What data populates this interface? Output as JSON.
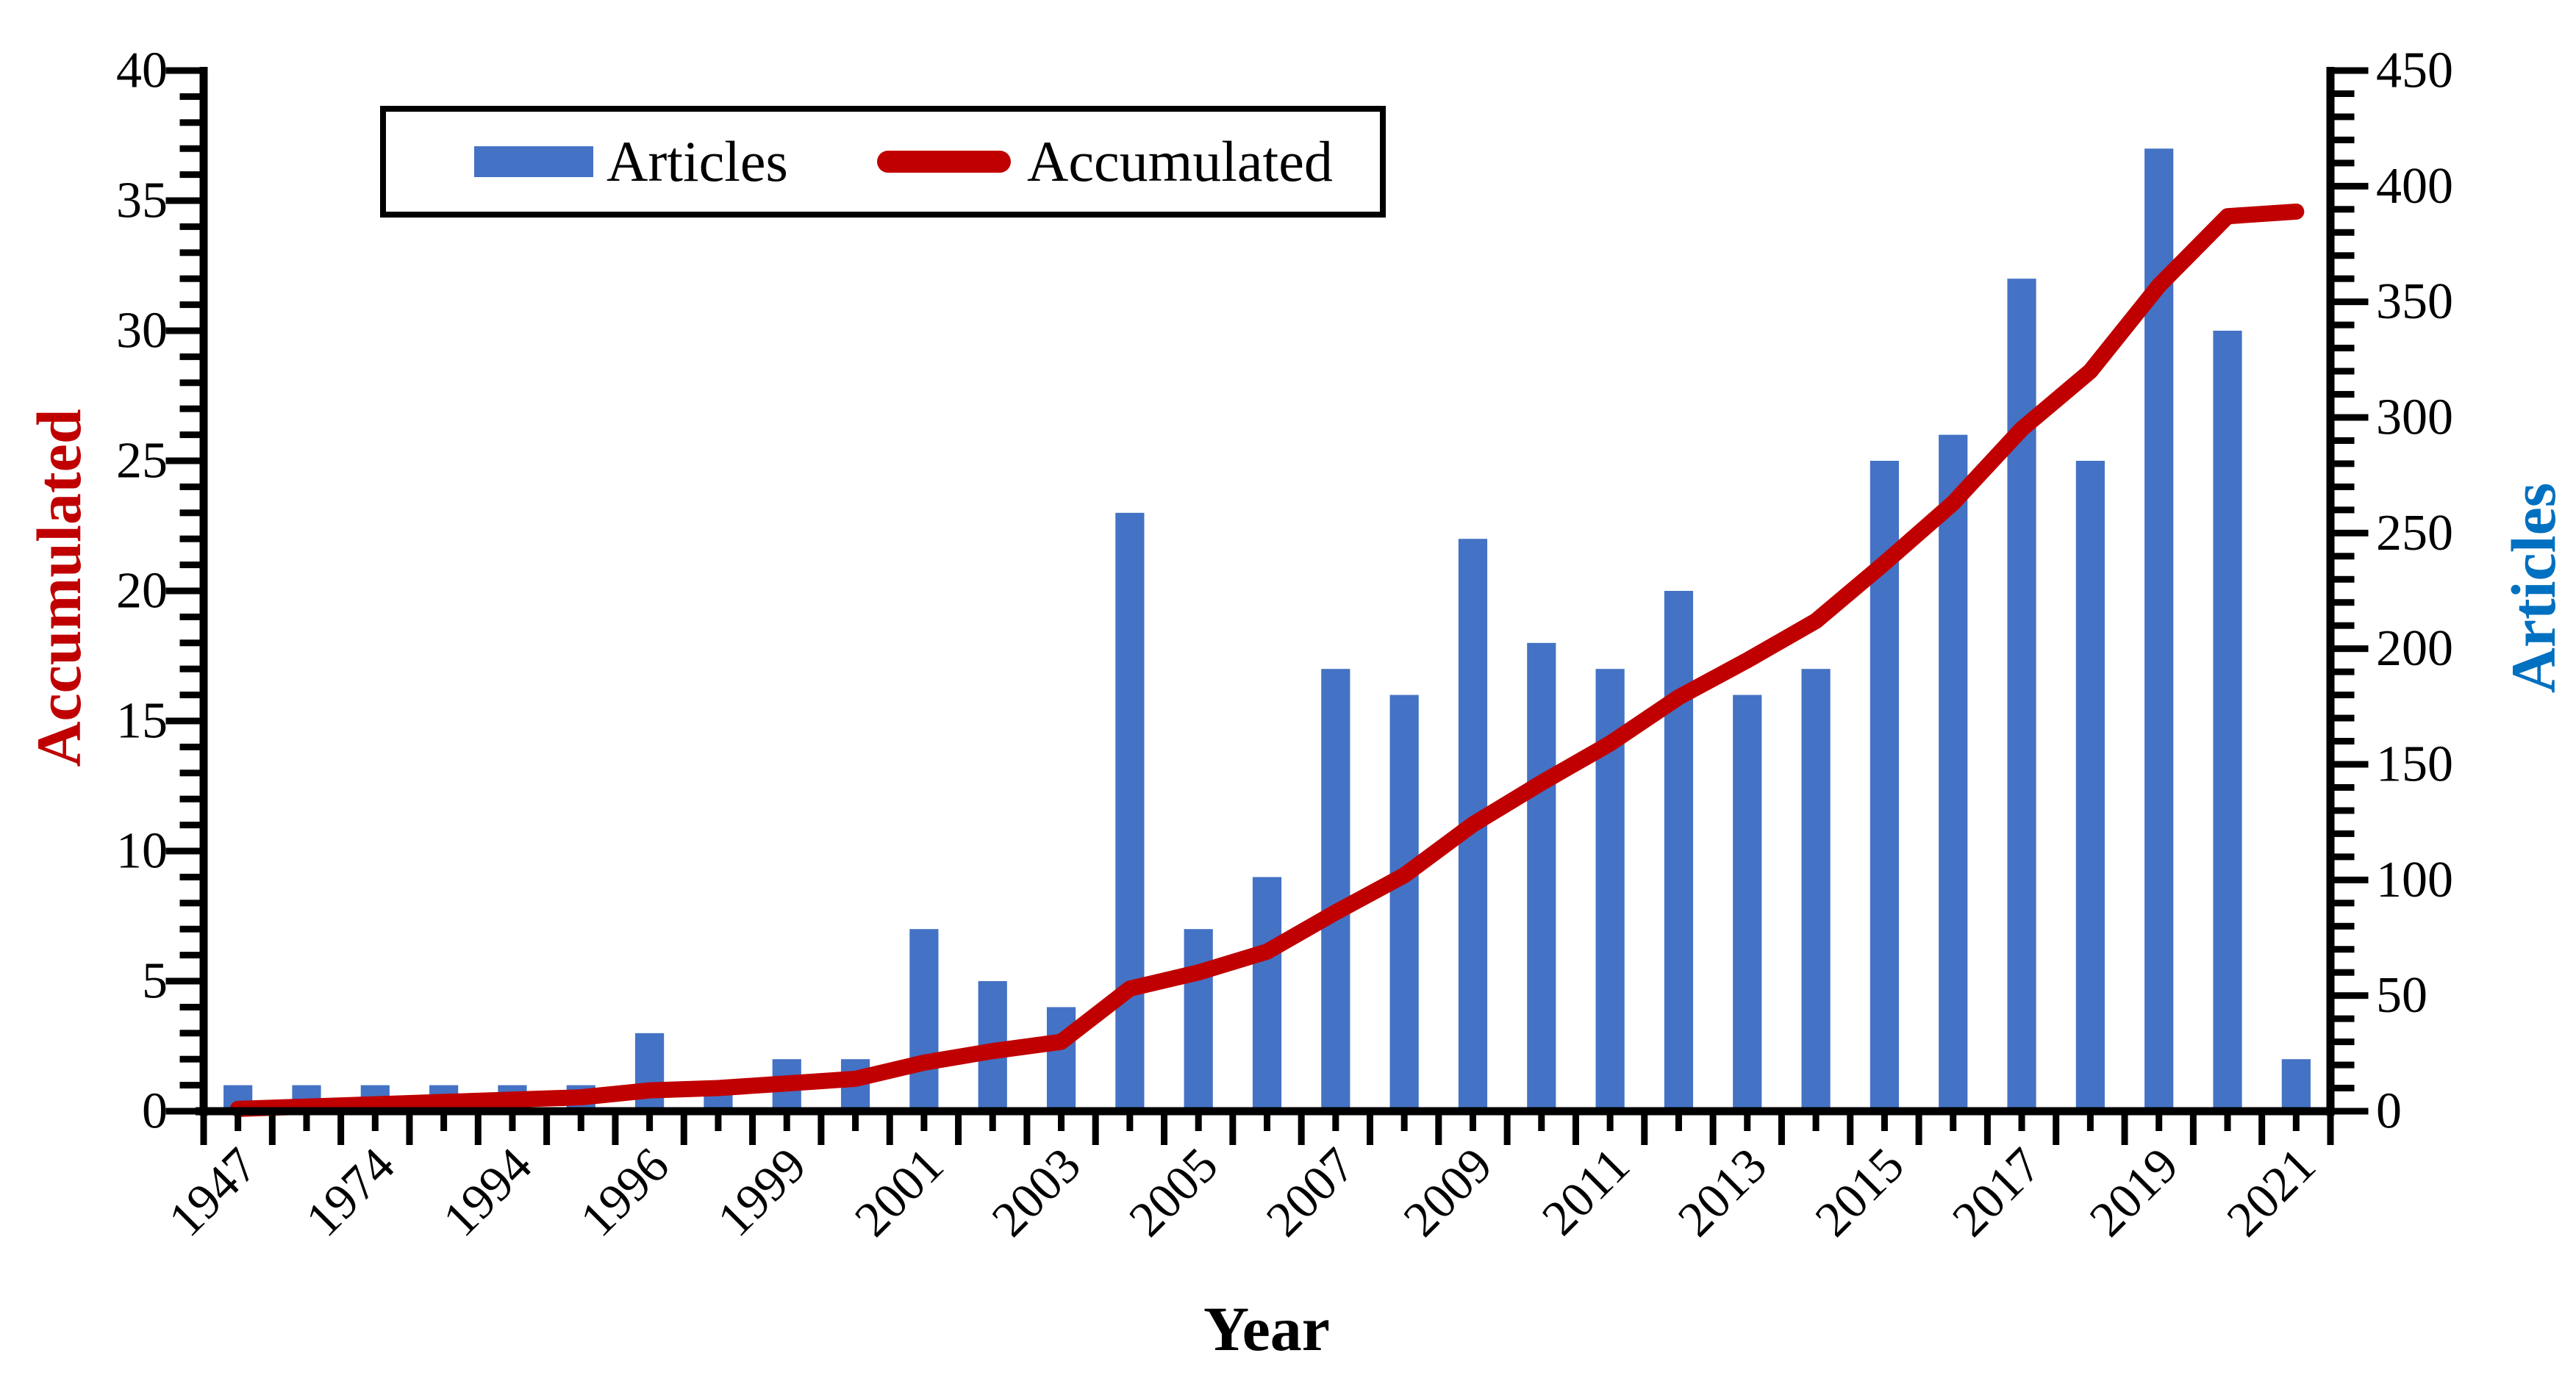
{
  "chart_data": {
    "type": "combo",
    "categories": [
      "1947",
      "",
      "1974",
      "",
      "1994",
      "",
      "1996",
      "",
      "1999",
      "",
      "2001",
      "",
      "2003",
      "",
      "2005",
      "",
      "2007",
      "",
      "2009",
      "",
      "2011",
      "",
      "2013",
      "",
      "2015",
      "",
      "2017",
      "",
      "2019",
      "",
      "2021"
    ],
    "series": [
      {
        "name": "Articles",
        "type": "bar",
        "axis": "left",
        "color": "#4472C4",
        "values": [
          1,
          1,
          1,
          1,
          1,
          1,
          3,
          1,
          2,
          2,
          7,
          5,
          4,
          23,
          7,
          9,
          17,
          16,
          22,
          18,
          17,
          20,
          16,
          17,
          25,
          26,
          32,
          25,
          37,
          30,
          2
        ]
      },
      {
        "name": "Accumulated",
        "type": "line",
        "axis": "right",
        "color": "#C00000",
        "values": [
          1,
          2,
          3,
          4,
          5,
          6,
          9,
          10,
          12,
          14,
          21,
          26,
          30,
          53,
          60,
          69,
          86,
          102,
          124,
          142,
          159,
          179,
          195,
          212,
          237,
          263,
          295,
          320,
          357,
          387,
          389
        ]
      }
    ],
    "left_axis": {
      "title": "Accumulated",
      "title_color": "#C00000",
      "min": 0,
      "max": 40,
      "major_step": 5,
      "minor_step": 1,
      "tick_labels": [
        "0",
        "5",
        "10",
        "15",
        "20",
        "25",
        "30",
        "35",
        "40"
      ]
    },
    "right_axis": {
      "title": "Articles",
      "title_color": "#0070C0",
      "min": 0,
      "max": 450,
      "major_step": 50,
      "minor_step": 10,
      "tick_labels": [
        "0",
        "50",
        "100",
        "150",
        "200",
        "250",
        "300",
        "350",
        "400",
        "450"
      ]
    },
    "x_axis": {
      "title": "Year",
      "visible_tick_labels": [
        "1947",
        "1974",
        "1994",
        "1996",
        "1999",
        "2001",
        "2003",
        "2005",
        "2007",
        "2009",
        "2011",
        "2013",
        "2015",
        "2017",
        "2019",
        "2021"
      ]
    },
    "legend": {
      "position": "top-left",
      "entries": [
        {
          "label": "Articles",
          "marker": "bar",
          "color": "#4472C4"
        },
        {
          "label": "Accumulated",
          "marker": "line",
          "color": "#C00000"
        }
      ]
    },
    "grid": false,
    "background": "#FFFFFF",
    "axis_color": "#000000"
  }
}
